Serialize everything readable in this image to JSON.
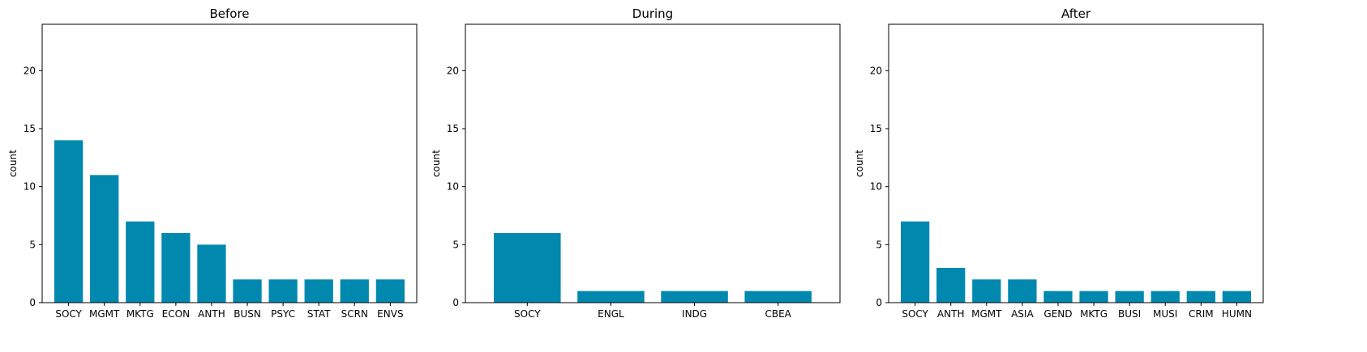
{
  "chart_data": [
    {
      "type": "bar",
      "title": "Before",
      "xlabel": "",
      "ylabel": "count",
      "ylim": [
        0,
        24
      ],
      "yticks": [
        0,
        5,
        10,
        15,
        20
      ],
      "grid": false,
      "bar_color": "#0088AF",
      "categories": [
        "SOCY",
        "MGMT",
        "MKTG",
        "ECON",
        "ANTH",
        "BUSN",
        "PSYC",
        "STAT",
        "SCRN",
        "ENVS"
      ],
      "values": [
        14,
        11,
        7,
        6,
        5,
        2,
        2,
        2,
        2,
        2
      ]
    },
    {
      "type": "bar",
      "title": "During",
      "xlabel": "",
      "ylabel": "count",
      "ylim": [
        0,
        24
      ],
      "yticks": [
        0,
        5,
        10,
        15,
        20
      ],
      "grid": false,
      "bar_color": "#0088AF",
      "categories": [
        "SOCY",
        "ENGL",
        "INDG",
        "CBEA"
      ],
      "values": [
        6,
        1,
        1,
        1
      ]
    },
    {
      "type": "bar",
      "title": "After",
      "xlabel": "",
      "ylabel": "count",
      "ylim": [
        0,
        24
      ],
      "yticks": [
        0,
        5,
        10,
        15,
        20
      ],
      "grid": false,
      "bar_color": "#0088AF",
      "categories": [
        "SOCY",
        "ANTH",
        "MGMT",
        "ASIA",
        "GEND",
        "MKTG",
        "BUSI",
        "MUSI",
        "CRIM",
        "HUMN"
      ],
      "values": [
        7,
        3,
        2,
        2,
        1,
        1,
        1,
        1,
        1,
        1
      ]
    }
  ]
}
